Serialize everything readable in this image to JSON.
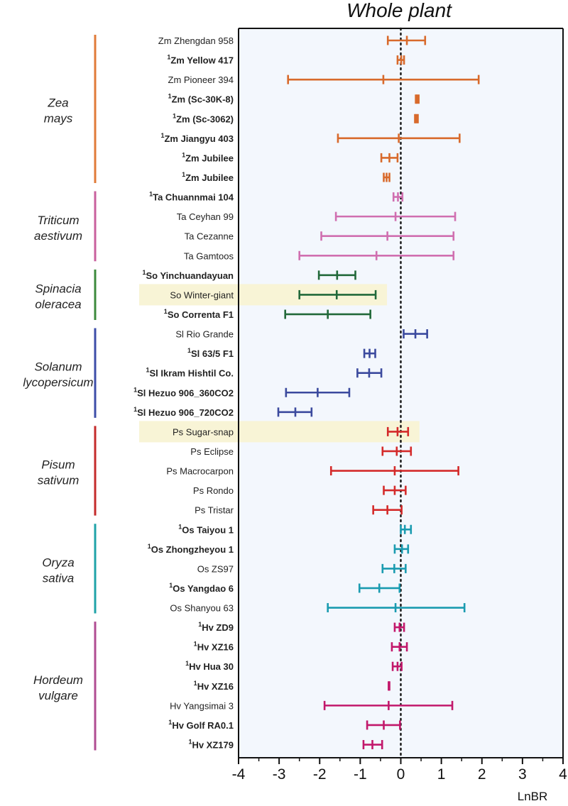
{
  "chart_data": {
    "type": "forest",
    "title": "Whole plant",
    "xlabel": "LnBR",
    "xlim": [
      -4,
      4
    ],
    "xticks": [
      -4,
      -3,
      -2,
      -1,
      0,
      1,
      2,
      3,
      4
    ],
    "reference_line": 0,
    "highlighted_rows": [
      "So Winter-giant",
      "Ps Sugar-snap"
    ],
    "groups": [
      {
        "species_line1": "Zea",
        "species_line2": "mays",
        "color": "#E07B39",
        "rows": [
          {
            "sup": "",
            "label": "Zm Zhengdan 958",
            "bold": false,
            "color": "#D86A2C",
            "low": -0.32,
            "mean": 0.15,
            "high": 0.6
          },
          {
            "sup": "1",
            "label": "Zm Yellow 417",
            "bold": true,
            "color": "#D86A2C",
            "low": -0.08,
            "mean": 0.01,
            "high": 0.08
          },
          {
            "sup": "",
            "label": "Zm Pioneer 394",
            "bold": false,
            "color": "#D86A2C",
            "low": -2.78,
            "mean": -0.43,
            "high": 1.92
          },
          {
            "sup": "1",
            "label": "Zm (Sc-30K-8)",
            "bold": true,
            "color": "#D86A2C",
            "low": 0.37,
            "mean": 0.4,
            "high": 0.44
          },
          {
            "sup": "1",
            "label": "Zm (Sc-3062)",
            "bold": true,
            "color": "#D86A2C",
            "low": 0.35,
            "mean": 0.38,
            "high": 0.42
          },
          {
            "sup": "1",
            "label": "Zm Jiangyu 403",
            "bold": true,
            "color": "#D86A2C",
            "low": -1.55,
            "mean": -0.05,
            "high": 1.45
          },
          {
            "sup": "1",
            "label": "Zm Jubilee",
            "bold": true,
            "color": "#D86A2C",
            "low": -0.48,
            "mean": -0.28,
            "high": -0.08
          },
          {
            "sup": "1",
            "label": "Zm Jubilee",
            "bold": true,
            "color": "#D86A2C",
            "low": -0.42,
            "mean": -0.35,
            "high": -0.28
          }
        ]
      },
      {
        "species_line1": "Triticum",
        "species_line2": "aestivum",
        "color": "#C9609E",
        "rows": [
          {
            "sup": "1",
            "label": "Ta Chuannmai 104",
            "bold": true,
            "color": "#D06FB0",
            "low": -0.18,
            "mean": -0.07,
            "high": 0.04
          },
          {
            "sup": "",
            "label": "Ta Ceyhan 99",
            "bold": false,
            "color": "#D06FB0",
            "low": -1.6,
            "mean": -0.13,
            "high": 1.34
          },
          {
            "sup": "",
            "label": "Ta Cezanne",
            "bold": false,
            "color": "#D06FB0",
            "low": -1.96,
            "mean": -0.33,
            "high": 1.3
          },
          {
            "sup": "",
            "label": "Ta Gamtoos",
            "bold": false,
            "color": "#D06FB0",
            "low": -2.5,
            "mean": -0.6,
            "high": 1.3
          }
        ]
      },
      {
        "species_line1": "Spinacia",
        "species_line2": "oleracea",
        "color": "#3C8A3C",
        "rows": [
          {
            "sup": "1",
            "label": "So Yinchuandayuan",
            "bold": true,
            "color": "#22693A",
            "low": -2.02,
            "mean": -1.57,
            "high": -1.12
          },
          {
            "sup": "",
            "label": "So Winter-giant",
            "bold": false,
            "color": "#22693A",
            "low": -2.5,
            "mean": -1.58,
            "high": -0.62
          },
          {
            "sup": "1",
            "label": "So Correnta F1",
            "bold": true,
            "color": "#22693A",
            "low": -2.85,
            "mean": -1.8,
            "high": -0.75
          }
        ]
      },
      {
        "species_line1": "Solanum",
        "species_line2": "lycopersicum",
        "color": "#3D4EA8",
        "rows": [
          {
            "sup": "",
            "label": "Sl Rio Grande",
            "bold": false,
            "color": "#3B4A9E",
            "low": 0.07,
            "mean": 0.36,
            "high": 0.65
          },
          {
            "sup": "1",
            "label": "Sl 63/5 F1",
            "bold": true,
            "color": "#3B4A9E",
            "low": -0.9,
            "mean": -0.77,
            "high": -0.63
          },
          {
            "sup": "1",
            "label": "Sl Ikram Hishtil Co.",
            "bold": true,
            "color": "#3B4A9E",
            "low": -1.07,
            "mean": -0.78,
            "high": -0.48
          },
          {
            "sup": "1",
            "label": "Sl Hezuo 906_360CO2",
            "bold": true,
            "color": "#3B4A9E",
            "low": -2.83,
            "mean": -2.05,
            "high": -1.27
          },
          {
            "sup": "1",
            "label": "Sl Hezuo 906_720CO2",
            "bold": true,
            "color": "#3B4A9E",
            "low": -3.02,
            "mean": -2.6,
            "high": -2.2
          }
        ]
      },
      {
        "species_line1": "Pisum",
        "species_line2": "sativum",
        "color": "#C42B2B",
        "rows": [
          {
            "sup": "",
            "label": "Ps Sugar-snap",
            "bold": false,
            "color": "#D42A2A",
            "low": -0.32,
            "mean": -0.08,
            "high": 0.18
          },
          {
            "sup": "",
            "label": "Ps Eclipse",
            "bold": false,
            "color": "#D42A2A",
            "low": -0.45,
            "mean": -0.1,
            "high": 0.25
          },
          {
            "sup": "",
            "label": "Ps Macrocarpon",
            "bold": false,
            "color": "#D42A2A",
            "low": -1.72,
            "mean": -0.15,
            "high": 1.42
          },
          {
            "sup": "",
            "label": "Ps Rondo",
            "bold": false,
            "color": "#D42A2A",
            "low": -0.42,
            "mean": -0.15,
            "high": 0.12
          },
          {
            "sup": "",
            "label": "Ps Tristar",
            "bold": false,
            "color": "#D42A2A",
            "low": -0.68,
            "mean": -0.33,
            "high": 0.02
          }
        ]
      },
      {
        "species_line1": "Oryza",
        "species_line2": "sativa",
        "color": "#1FA3A8",
        "rows": [
          {
            "sup": "1",
            "label": "Os Taiyou 1",
            "bold": true,
            "color": "#1A9BB0",
            "low": 0.0,
            "mean": 0.1,
            "high": 0.25
          },
          {
            "sup": "1",
            "label": "Os Zhongzheyou 1",
            "bold": true,
            "color": "#1A9BB0",
            "low": -0.15,
            "mean": 0.03,
            "high": 0.18
          },
          {
            "sup": "",
            "label": "Os ZS97",
            "bold": false,
            "color": "#1A9BB0",
            "low": -0.45,
            "mean": -0.16,
            "high": 0.12
          },
          {
            "sup": "1",
            "label": "Os Yangdao 6",
            "bold": true,
            "color": "#1A9BB0",
            "low": -1.02,
            "mean": -0.53,
            "high": -0.03
          },
          {
            "sup": "",
            "label": "Os Shanyou 63",
            "bold": false,
            "color": "#1A9BB0",
            "low": -1.8,
            "mean": -0.13,
            "high": 1.57
          }
        ]
      },
      {
        "species_line1": "Hordeum",
        "species_line2": "vulgare",
        "color": "#B04C92",
        "rows": [
          {
            "sup": "1",
            "label": "Hv ZD9",
            "bold": true,
            "color": "#C2186B",
            "low": -0.15,
            "mean": -0.03,
            "high": 0.08
          },
          {
            "sup": "1",
            "label": "Hv XZ16",
            "bold": true,
            "color": "#C2186B",
            "low": -0.22,
            "mean": -0.03,
            "high": 0.15
          },
          {
            "sup": "1",
            "label": "Hv Hua 30",
            "bold": true,
            "color": "#C2186B",
            "low": -0.2,
            "mean": -0.08,
            "high": 0.02
          },
          {
            "sup": "1",
            "label": "Hv XZ16",
            "bold": true,
            "color": "#C2186B",
            "low": -0.3,
            "mean": -0.29,
            "high": -0.28
          },
          {
            "sup": "",
            "label": "Hv Yangsimai 3",
            "bold": false,
            "color": "#C2186B",
            "low": -1.88,
            "mean": -0.3,
            "high": 1.27
          },
          {
            "sup": "1",
            "label": "Hv Golf RA0.1",
            "bold": true,
            "color": "#C2186B",
            "low": -0.83,
            "mean": -0.42,
            "high": -0.02
          },
          {
            "sup": "1",
            "label": "Hv XZ179",
            "bold": true,
            "color": "#C2186B",
            "low": -0.92,
            "mean": -0.7,
            "high": -0.46
          }
        ]
      }
    ]
  }
}
